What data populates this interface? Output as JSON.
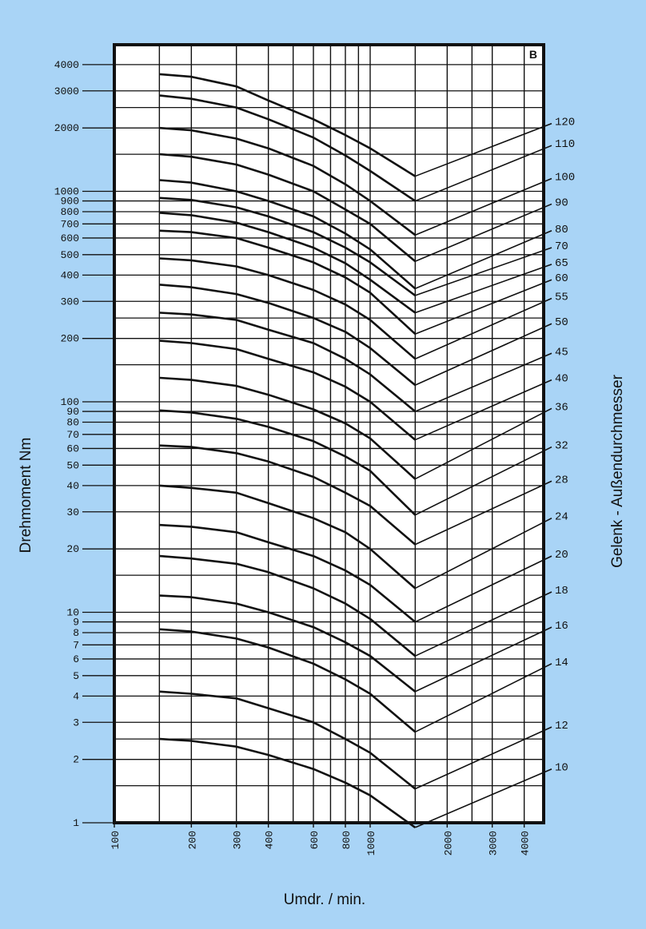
{
  "chart_data": {
    "type": "line",
    "title": "",
    "panel_label": "B",
    "xlabel": "Umdr. / min.",
    "ylabel": "Drehmoment Nm",
    "y2label": "Gelenk - Außendurchmesser",
    "x_scale": "log",
    "y_scale": "log",
    "xlim": [
      100,
      5000
    ],
    "ylim": [
      1,
      5000
    ],
    "x_tick_labels": [
      "100",
      "200",
      "300",
      "400",
      "600",
      "800",
      "1000",
      "2000",
      "3000",
      "4000"
    ],
    "y_tick_labels": [
      "4000",
      "3000",
      "2000",
      "1000",
      "900",
      "800",
      "700",
      "600",
      "500",
      "400",
      "300",
      "200",
      "100",
      "90",
      "80",
      "70",
      "60",
      "50",
      "40",
      "30",
      "20",
      "10",
      "9",
      "8",
      "7",
      "6",
      "5",
      "4",
      "3",
      "2",
      "1"
    ],
    "x": [
      150,
      200,
      300,
      400,
      600,
      800,
      1000,
      1500
    ],
    "series": [
      {
        "name": "120",
        "values": [
          3600,
          3500,
          3150,
          2700,
          2200,
          1850,
          1600,
          1180
        ],
        "end_y": 2100
      },
      {
        "name": "110",
        "values": [
          2850,
          2750,
          2500,
          2200,
          1800,
          1480,
          1250,
          900
        ],
        "end_y": 1650
      },
      {
        "name": "100",
        "values": [
          2000,
          1950,
          1780,
          1600,
          1320,
          1080,
          900,
          620
        ],
        "end_y": 1150
      },
      {
        "name": "90",
        "values": [
          1500,
          1460,
          1340,
          1200,
          1000,
          820,
          700,
          465
        ],
        "end_y": 870
      },
      {
        "name": "80",
        "values": [
          1130,
          1100,
          1000,
          900,
          760,
          630,
          530,
          345
        ],
        "end_y": 650
      },
      {
        "name": "70",
        "values": [
          930,
          910,
          840,
          760,
          640,
          540,
          460,
          320
        ],
        "end_y": 540
      },
      {
        "name": "65",
        "values": [
          790,
          770,
          710,
          640,
          540,
          455,
          380,
          265
        ],
        "end_y": 450
      },
      {
        "name": "60",
        "values": [
          650,
          640,
          600,
          540,
          460,
          390,
          330,
          210
        ],
        "end_y": 380
      },
      {
        "name": "55",
        "values": [
          480,
          470,
          440,
          400,
          340,
          290,
          245,
          160
        ],
        "end_y": 310
      },
      {
        "name": "50",
        "values": [
          360,
          350,
          325,
          295,
          250,
          215,
          180,
          120
        ],
        "end_y": 235
      },
      {
        "name": "45",
        "values": [
          265,
          260,
          245,
          220,
          190,
          160,
          135,
          90
        ],
        "end_y": 170
      },
      {
        "name": "40",
        "values": [
          195,
          190,
          178,
          160,
          138,
          118,
          100,
          66
        ],
        "end_y": 127
      },
      {
        "name": "36",
        "values": [
          130,
          127,
          119,
          108,
          92,
          79,
          67,
          43
        ],
        "end_y": 93
      },
      {
        "name": "32",
        "values": [
          91,
          89,
          83,
          76,
          65,
          55,
          47,
          29
        ],
        "end_y": 61
      },
      {
        "name": "28",
        "values": [
          62,
          61,
          57,
          52,
          44,
          37,
          32,
          21
        ],
        "end_y": 42
      },
      {
        "name": "24",
        "values": [
          40,
          39,
          37,
          33,
          28,
          24,
          20,
          13
        ],
        "end_y": 28
      },
      {
        "name": "20",
        "values": [
          26,
          25.5,
          24,
          21.5,
          18.5,
          15.8,
          13.5,
          9
        ],
        "end_y": 18.5
      },
      {
        "name": "18",
        "values": [
          18.5,
          18,
          17,
          15.5,
          13,
          11,
          9.3,
          6.2
        ],
        "end_y": 12.5
      },
      {
        "name": "16",
        "values": [
          12,
          11.8,
          11,
          10,
          8.5,
          7.2,
          6.2,
          4.2
        ],
        "end_y": 8.5
      },
      {
        "name": "14",
        "values": [
          8.3,
          8.1,
          7.5,
          6.8,
          5.7,
          4.8,
          4.1,
          2.7
        ],
        "end_y": 5.7
      },
      {
        "name": "12",
        "values": [
          4.2,
          4.1,
          3.9,
          3.5,
          3.0,
          2.5,
          2.15,
          1.45
        ],
        "end_y": 2.85
      },
      {
        "name": "10",
        "values": [
          2.5,
          2.45,
          2.3,
          2.1,
          1.8,
          1.55,
          1.35,
          0.95
        ],
        "end_y": 1.8
      }
    ],
    "grid": true,
    "legend": "right"
  }
}
